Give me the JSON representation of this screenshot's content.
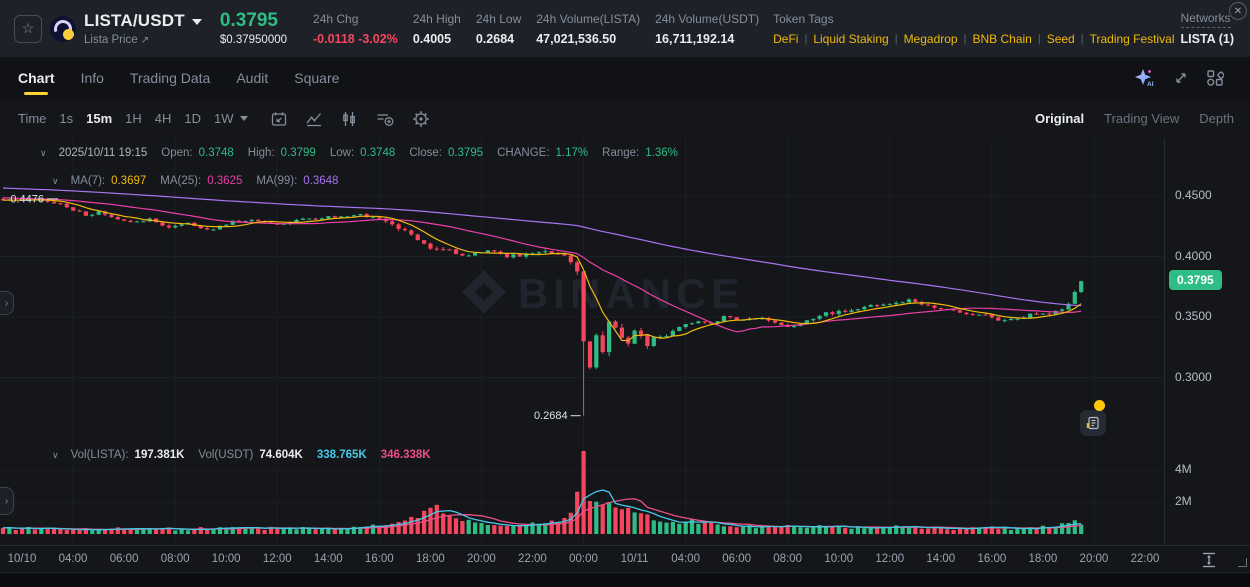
{
  "header": {
    "pair": "LISTA/USDT",
    "pair_subtitle": "Lista Price",
    "price": "0.3795",
    "price_usd": "$0.37950000",
    "stats": [
      {
        "label": "24h Chg",
        "value": "-0.0118 -3.02%",
        "tone": "red"
      },
      {
        "label": "24h High",
        "value": "0.4005",
        "tone": "normal"
      },
      {
        "label": "24h Low",
        "value": "0.2684",
        "tone": "normal"
      },
      {
        "label": "24h Volume(LISTA)",
        "value": "47,021,536.50",
        "tone": "normal"
      },
      {
        "label": "24h Volume(USDT)",
        "value": "16,711,192.14",
        "tone": "normal"
      }
    ],
    "token_tags_label": "Token Tags",
    "token_tags": [
      "DeFi",
      "Liquid Staking",
      "Megadrop",
      "BNB Chain",
      "Seed",
      "Trading Festival"
    ],
    "networks_label": "Networks",
    "networks_value": "LISTA (1)",
    "icons": [
      "favorite-star-icon",
      "lista-coin-logo",
      "chevron-down-icon",
      "external-link-icon"
    ]
  },
  "tabs": {
    "items": [
      "Chart",
      "Info",
      "Trading Data",
      "Audit",
      "Square"
    ],
    "active": "Chart",
    "action_icons": [
      "ai-assistant-icon",
      "expand-icon",
      "layout-grid-icon",
      "close-icon"
    ]
  },
  "toolbar": {
    "intervals": [
      "Time",
      "1s",
      "15m",
      "1H",
      "4H",
      "1D",
      "1W"
    ],
    "active_interval": "15m",
    "tool_icons": [
      "calendar-icon",
      "line-chart-icon",
      "candlestick-icon",
      "indicators-icon",
      "settings-icon"
    ],
    "views": [
      "Original",
      "Trading View",
      "Depth"
    ],
    "active_view": "Original"
  },
  "ohlc_row": {
    "timestamp": "2025/10/11 19:15",
    "fields": [
      {
        "label": "Open:",
        "value": "0.3748"
      },
      {
        "label": "High:",
        "value": "0.3799"
      },
      {
        "label": "Low:",
        "value": "0.3748"
      },
      {
        "label": "Close:",
        "value": "0.3795"
      },
      {
        "label": "CHANGE:",
        "value": "1.17%"
      },
      {
        "label": "Range:",
        "value": "1.36%"
      }
    ]
  },
  "ma_row": {
    "fields": [
      {
        "label": "MA(7):",
        "value": "0.3697",
        "color": "#F0B90B"
      },
      {
        "label": "MA(25):",
        "value": "0.3625",
        "color": "#EB3FA9"
      },
      {
        "label": "MA(99):",
        "value": "0.3648",
        "color": "#A873F0"
      }
    ]
  },
  "volume_row": {
    "fields": [
      {
        "label": "Vol(LISTA):",
        "value": "197.381K",
        "color": "#EAECEF"
      },
      {
        "label": "Vol(USDT)",
        "value": "74.604K",
        "color": "#EAECEF"
      },
      {
        "label": "",
        "value": "338.765K",
        "color": "#45C9E8"
      },
      {
        "label": "",
        "value": "346.338K",
        "color": "#ED4F84"
      }
    ]
  },
  "right_axis": {
    "price_ticks": [
      {
        "label": "0.4500",
        "price": 0.45
      },
      {
        "label": "0.4000",
        "price": 0.4
      },
      {
        "label": "0.3500",
        "price": 0.35
      },
      {
        "label": "0.3000",
        "price": 0.3
      }
    ],
    "volume_ticks": [
      {
        "label": "4M",
        "value": 4
      },
      {
        "label": "2M",
        "value": 2
      }
    ],
    "last_price_badge": "0.3795"
  },
  "time_axis": {
    "ticks": [
      "10/10",
      "04:00",
      "06:00",
      "08:00",
      "10:00",
      "12:00",
      "14:00",
      "16:00",
      "18:00",
      "20:00",
      "22:00",
      "00:00",
      "10/11",
      "04:00",
      "06:00",
      "08:00",
      "10:00",
      "12:00",
      "14:00",
      "16:00",
      "18:00",
      "20:00",
      "22:00"
    ]
  },
  "watermark": "BINANCE",
  "chart": {
    "type": "candlestick-with-volume",
    "interval": "15m",
    "candle_count": 170,
    "last_price": 0.3795,
    "marked_high": {
      "index": 8,
      "price": 0.4476,
      "label": "0.4476"
    },
    "marked_low": {
      "index": 91,
      "price": 0.2684,
      "label": "0.2684"
    },
    "colors": {
      "up": "#2EBD85",
      "down": "#F6465D",
      "ma7": "#F0B90B",
      "ma25": "#EB3FA9",
      "ma99": "#A873F0",
      "vol_ma5": "#45C9E8",
      "vol_ma10": "#ED4F84",
      "grid": "#1b1f27",
      "label": "#DEE2E8",
      "watermark": "#20252d"
    },
    "price_anchors": [
      [
        0,
        0.4458
      ],
      [
        3,
        0.4472
      ],
      [
        6,
        0.4465
      ],
      [
        9,
        0.444
      ],
      [
        11,
        0.439
      ],
      [
        13,
        0.4335
      ],
      [
        15,
        0.4365
      ],
      [
        19,
        0.4285
      ],
      [
        23,
        0.4305
      ],
      [
        26,
        0.4245
      ],
      [
        29,
        0.4275
      ],
      [
        32,
        0.4215
      ],
      [
        36,
        0.429
      ],
      [
        40,
        0.43
      ],
      [
        43,
        0.4262
      ],
      [
        46,
        0.43
      ],
      [
        49,
        0.431
      ],
      [
        52,
        0.433
      ],
      [
        55,
        0.4345
      ],
      [
        58,
        0.433
      ],
      [
        60,
        0.429
      ],
      [
        62,
        0.423
      ],
      [
        65,
        0.415
      ],
      [
        67,
        0.408
      ],
      [
        70,
        0.4045
      ],
      [
        72,
        0.399
      ],
      [
        74,
        0.404
      ],
      [
        77,
        0.404
      ],
      [
        79,
        0.4005
      ],
      [
        82,
        0.401
      ],
      [
        84,
        0.4048
      ],
      [
        86,
        0.403
      ],
      [
        88,
        0.4
      ],
      [
        89,
        0.395
      ],
      [
        90,
        0.388
      ],
      [
        91,
        0.328
      ],
      [
        92,
        0.306
      ],
      [
        93,
        0.336
      ],
      [
        94,
        0.321
      ],
      [
        95,
        0.344
      ],
      [
        96,
        0.338
      ],
      [
        98,
        0.33
      ],
      [
        99,
        0.34
      ],
      [
        101,
        0.327
      ],
      [
        102,
        0.334
      ],
      [
        104,
        0.335
      ],
      [
        106,
        0.341
      ],
      [
        109,
        0.3475
      ],
      [
        111,
        0.3455
      ],
      [
        113,
        0.35
      ],
      [
        116,
        0.3465
      ],
      [
        118,
        0.3495
      ],
      [
        121,
        0.344
      ],
      [
        124,
        0.3425
      ],
      [
        126,
        0.3465
      ],
      [
        129,
        0.3525
      ],
      [
        133,
        0.3555
      ],
      [
        136,
        0.3585
      ],
      [
        139,
        0.361
      ],
      [
        142,
        0.3635
      ],
      [
        144,
        0.36
      ],
      [
        146,
        0.3585
      ],
      [
        149,
        0.3555
      ],
      [
        152,
        0.3525
      ],
      [
        155,
        0.3495
      ],
      [
        157,
        0.347
      ],
      [
        160,
        0.3505
      ],
      [
        162,
        0.3535
      ],
      [
        164,
        0.3525
      ],
      [
        166,
        0.357
      ],
      [
        167,
        0.362
      ],
      [
        168,
        0.37
      ],
      [
        169,
        0.3795
      ]
    ],
    "volume_anchors": [
      [
        0,
        0.35
      ],
      [
        20,
        0.3
      ],
      [
        40,
        0.35
      ],
      [
        55,
        0.4
      ],
      [
        60,
        0.55
      ],
      [
        63,
        0.9
      ],
      [
        65,
        1.1
      ],
      [
        66,
        1.35
      ],
      [
        68,
        1.9
      ],
      [
        69,
        1.2
      ],
      [
        71,
        1.0
      ],
      [
        73,
        0.8
      ],
      [
        75,
        0.6
      ],
      [
        78,
        0.55
      ],
      [
        82,
        0.6
      ],
      [
        85,
        0.7
      ],
      [
        87,
        0.8
      ],
      [
        88,
        0.9
      ],
      [
        89,
        1.3
      ],
      [
        90,
        2.7
      ],
      [
        91,
        5.3
      ],
      [
        92,
        2.05
      ],
      [
        93,
        1.95
      ],
      [
        94,
        1.8
      ],
      [
        95,
        1.9
      ],
      [
        96,
        1.75
      ],
      [
        97,
        1.6
      ],
      [
        98,
        1.55
      ],
      [
        99,
        1.45
      ],
      [
        100,
        1.35
      ],
      [
        101,
        1.15
      ],
      [
        102,
        0.95
      ],
      [
        104,
        0.8
      ],
      [
        106,
        0.7
      ],
      [
        108,
        0.8
      ],
      [
        110,
        0.65
      ],
      [
        113,
        0.55
      ],
      [
        116,
        0.5
      ],
      [
        120,
        0.45
      ],
      [
        125,
        0.5
      ],
      [
        130,
        0.45
      ],
      [
        135,
        0.4
      ],
      [
        140,
        0.45
      ],
      [
        145,
        0.4
      ],
      [
        150,
        0.35
      ],
      [
        155,
        0.4
      ],
      [
        158,
        0.35
      ],
      [
        161,
        0.4
      ],
      [
        164,
        0.5
      ],
      [
        166,
        0.6
      ],
      [
        168,
        0.75
      ],
      [
        169,
        0.7
      ]
    ]
  }
}
